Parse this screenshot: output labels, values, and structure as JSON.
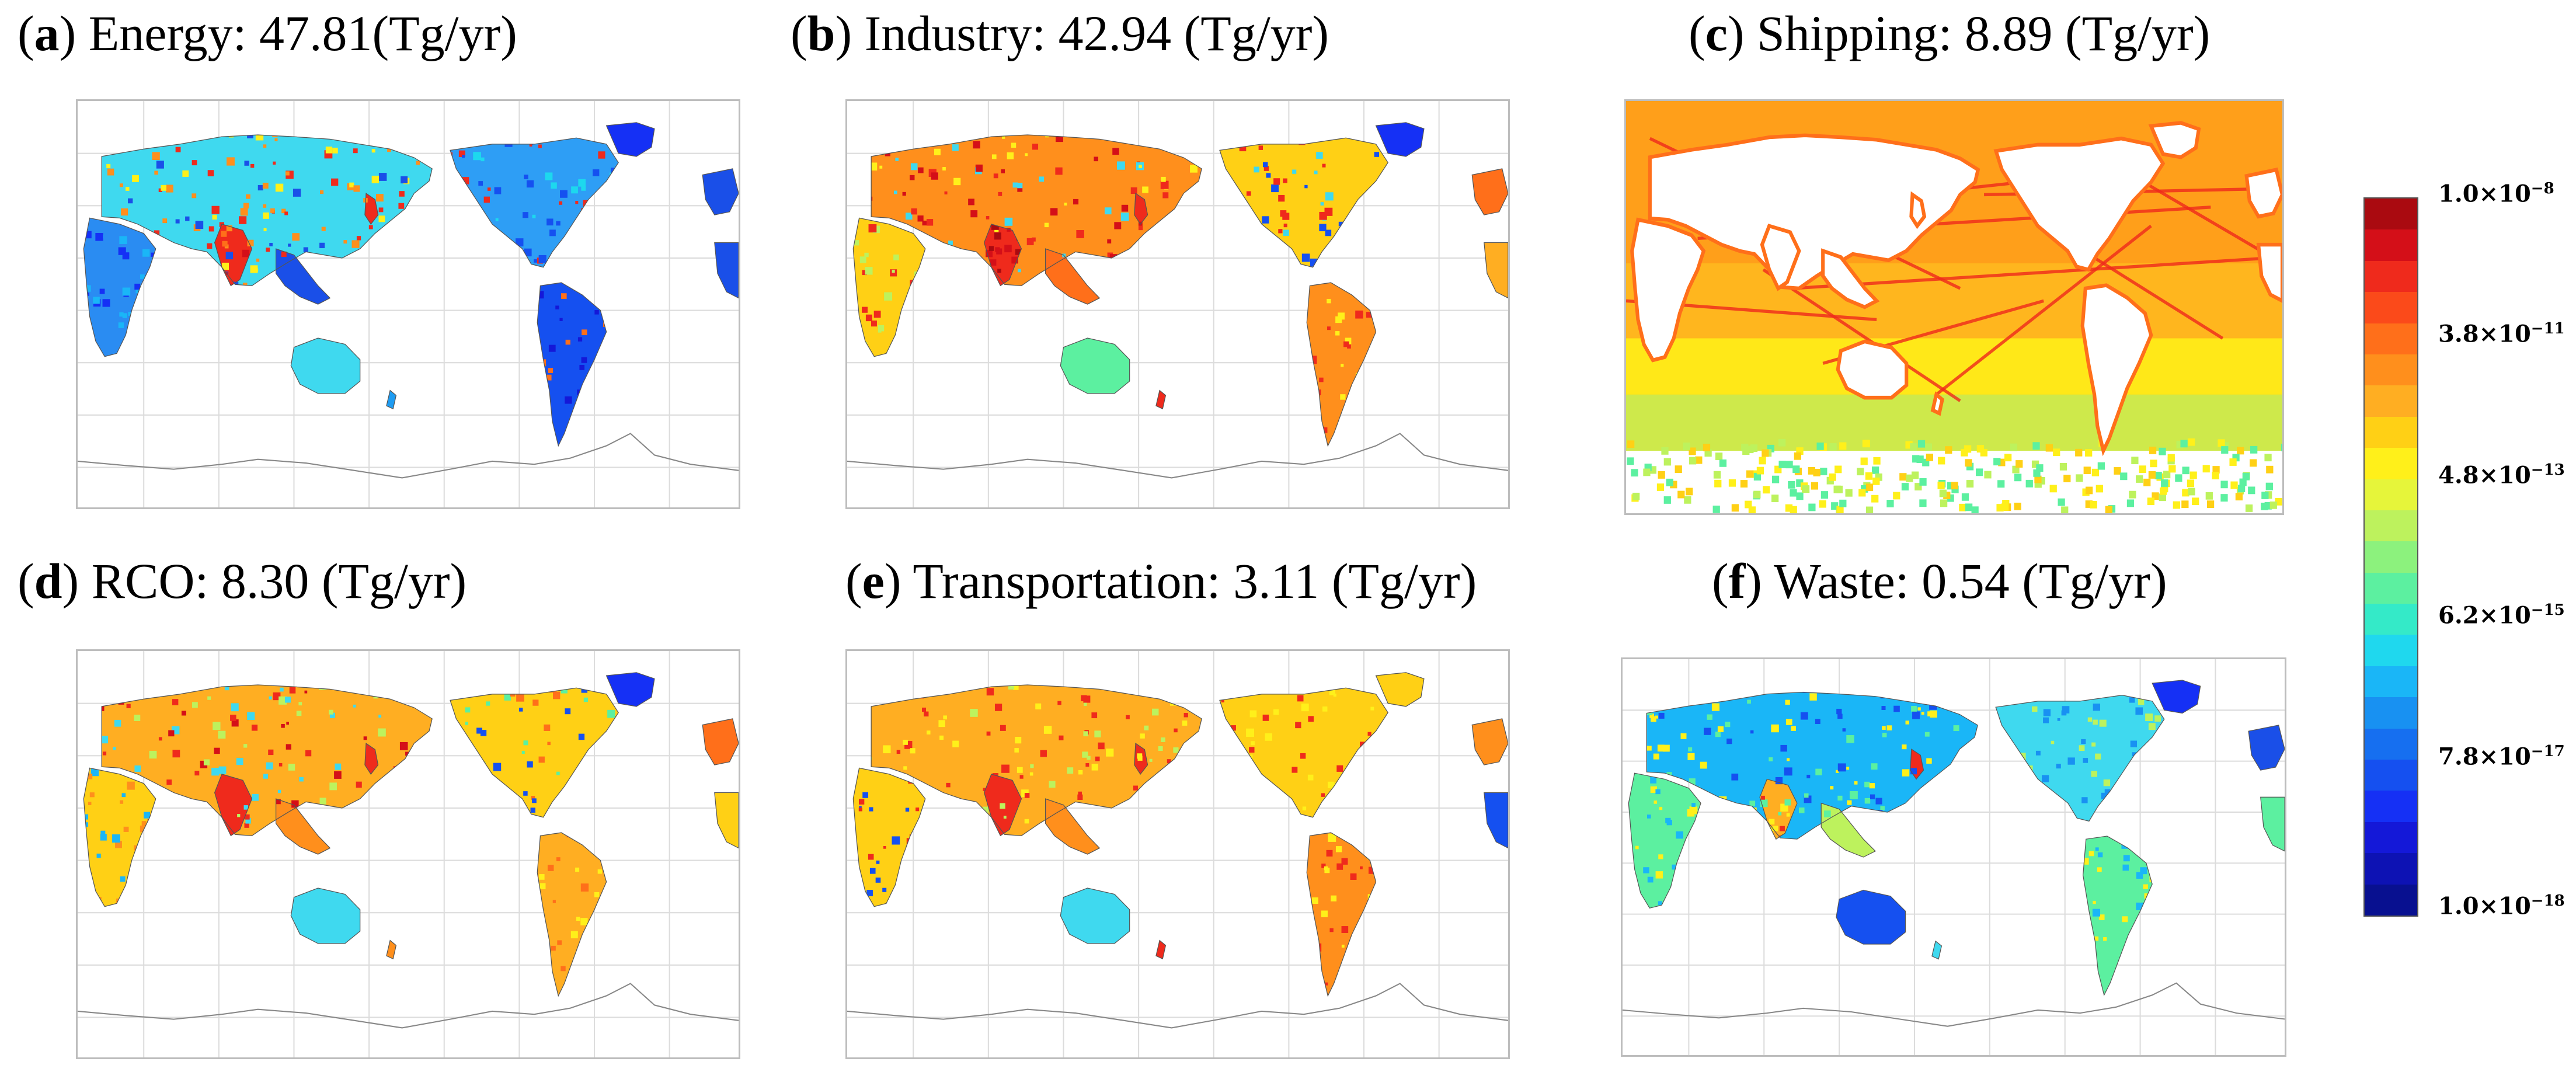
{
  "panels": [
    {
      "letter": "a",
      "text": ") Energy: 47.81(Tg/yr)",
      "style": "energy"
    },
    {
      "letter": "b",
      "text": ") Industry: 42.94 (Tg/yr)",
      "style": "industry"
    },
    {
      "letter": "c",
      "text": ") Shipping: 8.89 (Tg/yr)",
      "style": "shipping"
    },
    {
      "letter": "d",
      "text": ") RCO: 8.30 (Tg/yr)",
      "style": "rco"
    },
    {
      "letter": "e",
      "text": ") Transportation: 3.11 (Tg/yr)",
      "style": "transport"
    },
    {
      "letter": "f",
      "text": ") Waste: 0.54 (Tg/yr)",
      "style": "waste"
    }
  ],
  "colorbar": {
    "colors": [
      "#aa0a10",
      "#d40f18",
      "#ef2a1c",
      "#fb4a1a",
      "#ff6f1a",
      "#ff8f1c",
      "#ffae22",
      "#ffd015",
      "#fff01a",
      "#e6f53a",
      "#bdf25d",
      "#8cf27d",
      "#5cf0a0",
      "#34eac8",
      "#1fd8ee",
      "#1ab6f7",
      "#1891f2",
      "#166ff0",
      "#1550f0",
      "#1530f5",
      "#1418d8",
      "#0d12b4",
      "#081090"
    ],
    "labels": [
      {
        "mantissa": "1.0×10",
        "exp": "−8"
      },
      {
        "mantissa": "3.8×10",
        "exp": "−11"
      },
      {
        "mantissa": "4.8×10",
        "exp": "−13"
      },
      {
        "mantissa": "6.2×10",
        "exp": "−15"
      },
      {
        "mantissa": "7.8×10",
        "exp": "−17"
      },
      {
        "mantissa": "1.0×10",
        "exp": "−18"
      }
    ]
  }
}
